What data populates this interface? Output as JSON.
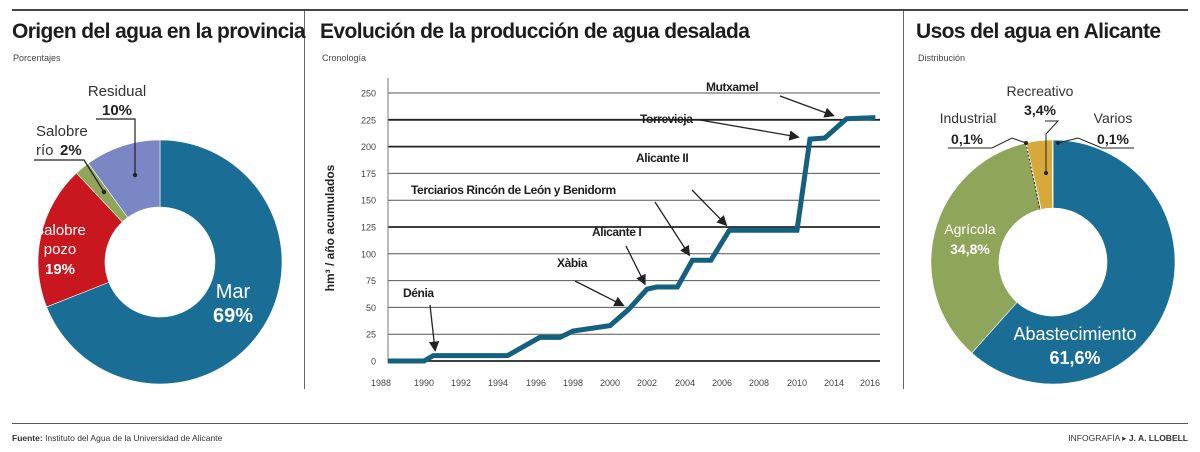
{
  "panels": {
    "left": {
      "title": "Origen del agua en la provincia",
      "subtitle": "Porcentajes"
    },
    "middle": {
      "title": "Evolución de la producción de agua desalada",
      "subtitle": "Cronología"
    },
    "right": {
      "title": "Usos del agua en Alicante",
      "subtitle": "Distribución"
    }
  },
  "chart_data": [
    {
      "type": "pie",
      "style": "donut",
      "title": "Origen del agua en la provincia",
      "subtitle": "Porcentajes",
      "slices": [
        {
          "name": "Mar",
          "value": 69,
          "label": "69%",
          "color": "#1a6e96"
        },
        {
          "name": "Salobre pozo",
          "value": 19,
          "label": "19%",
          "color": "#c8171e"
        },
        {
          "name": "Salobre río",
          "value": 2,
          "label": "2%",
          "color": "#8fa55a"
        },
        {
          "name": "Residual",
          "value": 10,
          "label": "10%",
          "color": "#7b86c4"
        }
      ]
    },
    {
      "type": "line",
      "title": "Evolución de la producción de agua desalada",
      "subtitle": "Cronología",
      "xlabel": "",
      "ylabel": "hm³ / año acumulados",
      "ylim": [
        0,
        250
      ],
      "yticks": [
        0,
        25,
        50,
        75,
        100,
        125,
        150,
        175,
        200,
        225,
        250
      ],
      "xticks": [
        "1988",
        "1990",
        "1992",
        "1994",
        "1996",
        "1998",
        "2000",
        "2002",
        "2004",
        "2006",
        "2008",
        "2010",
        "2014",
        "2016"
      ],
      "grid": true,
      "line_color": "#14607f",
      "points": [
        [
          1988,
          0
        ],
        [
          1990,
          0
        ],
        [
          1990.5,
          5
        ],
        [
          1994.5,
          5
        ],
        [
          1996.2,
          22
        ],
        [
          1997.3,
          22
        ],
        [
          1998,
          28
        ],
        [
          2000,
          33
        ],
        [
          2001,
          48
        ],
        [
          2002,
          67
        ],
        [
          2002.5,
          69
        ],
        [
          2003.6,
          69
        ],
        [
          2004.4,
          94
        ],
        [
          2005.4,
          94
        ],
        [
          2006.4,
          122
        ],
        [
          2010,
          122
        ],
        [
          2011.4,
          207
        ],
        [
          2013,
          208
        ],
        [
          2014.7,
          226
        ],
        [
          2016.3,
          227
        ]
      ],
      "annotations": [
        {
          "text": "Dénia",
          "year": 1990.6,
          "value": 5
        },
        {
          "text": "Xàbia",
          "year": 2001,
          "value": 48
        },
        {
          "text": "Alicante I",
          "year": 2002,
          "value": 67
        },
        {
          "text": "Terciarios Rincón de León y Benidorm",
          "year": 2004.4,
          "value": 94
        },
        {
          "text": "Alicante II",
          "year": 2006.4,
          "value": 122
        },
        {
          "text": "Torrevieja",
          "year": 2010.7,
          "value": 207
        },
        {
          "text": "Mutxamel",
          "year": 2014.2,
          "value": 226
        }
      ]
    },
    {
      "type": "pie",
      "style": "donut",
      "title": "Usos del agua en Alicante",
      "subtitle": "Distribución",
      "slices": [
        {
          "name": "Abastecimiento",
          "value": 61.6,
          "label": "61,6%",
          "color": "#1a6e96"
        },
        {
          "name": "Agrícola",
          "value": 34.8,
          "label": "34,8%",
          "color": "#8fa55a"
        },
        {
          "name": "Industrial",
          "value": 0.1,
          "label": "0,1%",
          "color": "#8fa55a"
        },
        {
          "name": "Recreativo",
          "value": 3.4,
          "label": "3,4%",
          "color": "#d6a93a"
        },
        {
          "name": "Varios",
          "value": 0.1,
          "label": "0,1%",
          "color": "#1a6e96"
        }
      ]
    }
  ],
  "footer": {
    "source_label": "Fuente:",
    "source_text": " Instituto del Agua de la Universidad de Alicante",
    "credit_label": "INFOGRAFÍA",
    "credit_name": "J. A. LLOBELL"
  }
}
